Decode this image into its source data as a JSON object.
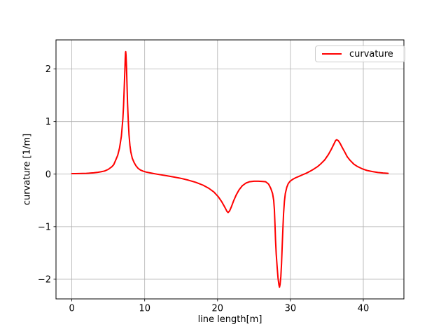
{
  "figure": {
    "background": "#ffffff"
  },
  "chart_data": {
    "type": "line",
    "title": "",
    "xlabel": "line length[m]",
    "ylabel": "curvature [1/m]",
    "xlim": [
      -2.17,
      45.57
    ],
    "ylim": [
      -2.374,
      2.554
    ],
    "x_ticks": [
      0,
      10,
      20,
      30,
      40
    ],
    "x_tick_labels": [
      "0",
      "10",
      "20",
      "30",
      "40"
    ],
    "y_ticks": [
      -2,
      -1,
      0,
      1,
      2
    ],
    "y_tick_labels": [
      "−2",
      "−1",
      "0",
      "1",
      "2"
    ],
    "grid": true,
    "grid_color": "#b0b0b0",
    "spine_color": "#000000",
    "legend": {
      "label": "curvature",
      "position": "upper right",
      "edge_color": "#cccccc"
    },
    "series": [
      {
        "name": "curvature",
        "color": "#ff0000",
        "linewidth": 2,
        "points": [
          [
            0,
            0.01
          ],
          [
            0.5,
            0.01
          ],
          [
            1,
            0.012
          ],
          [
            1.5,
            0.014
          ],
          [
            2,
            0.016
          ],
          [
            2.5,
            0.02
          ],
          [
            3,
            0.025
          ],
          [
            3.5,
            0.033
          ],
          [
            4,
            0.045
          ],
          [
            4.5,
            0.06
          ],
          [
            5,
            0.09
          ],
          [
            5.5,
            0.14
          ],
          [
            5.75,
            0.18
          ],
          [
            6.0,
            0.26
          ],
          [
            6.3,
            0.36
          ],
          [
            6.55,
            0.5
          ],
          [
            6.8,
            0.72
          ],
          [
            7.0,
            1.05
          ],
          [
            7.1,
            1.3
          ],
          [
            7.2,
            1.65
          ],
          [
            7.28,
            1.98
          ],
          [
            7.33,
            2.2
          ],
          [
            7.37,
            2.31
          ],
          [
            7.4,
            2.33
          ],
          [
            7.44,
            2.27
          ],
          [
            7.5,
            2.05
          ],
          [
            7.57,
            1.72
          ],
          [
            7.65,
            1.35
          ],
          [
            7.75,
            1.0
          ],
          [
            7.85,
            0.75
          ],
          [
            7.97,
            0.55
          ],
          [
            8.1,
            0.42
          ],
          [
            8.3,
            0.3
          ],
          [
            8.55,
            0.22
          ],
          [
            8.8,
            0.16
          ],
          [
            9.1,
            0.11
          ],
          [
            9.4,
            0.08
          ],
          [
            9.8,
            0.055
          ],
          [
            10.2,
            0.04
          ],
          [
            10.7,
            0.025
          ],
          [
            11.2,
            0.012
          ],
          [
            11.7,
            0.0
          ],
          [
            12.2,
            -0.012
          ],
          [
            13,
            -0.03
          ],
          [
            14,
            -0.055
          ],
          [
            15,
            -0.08
          ],
          [
            16,
            -0.115
          ],
          [
            17,
            -0.155
          ],
          [
            18,
            -0.21
          ],
          [
            18.8,
            -0.27
          ],
          [
            19.5,
            -0.34
          ],
          [
            20.1,
            -0.43
          ],
          [
            20.6,
            -0.53
          ],
          [
            21.0,
            -0.63
          ],
          [
            21.3,
            -0.71
          ],
          [
            21.45,
            -0.73
          ],
          [
            21.65,
            -0.7
          ],
          [
            21.9,
            -0.62
          ],
          [
            22.2,
            -0.51
          ],
          [
            22.55,
            -0.4
          ],
          [
            22.95,
            -0.3
          ],
          [
            23.4,
            -0.22
          ],
          [
            23.9,
            -0.17
          ],
          [
            24.4,
            -0.145
          ],
          [
            25.0,
            -0.135
          ],
          [
            25.6,
            -0.135
          ],
          [
            26.2,
            -0.14
          ],
          [
            26.6,
            -0.145
          ],
          [
            27.0,
            -0.19
          ],
          [
            27.3,
            -0.27
          ],
          [
            27.55,
            -0.37
          ],
          [
            27.7,
            -0.5
          ],
          [
            27.8,
            -0.68
          ],
          [
            27.88,
            -0.95
          ],
          [
            27.95,
            -1.25
          ],
          [
            28.05,
            -1.52
          ],
          [
            28.18,
            -1.78
          ],
          [
            28.3,
            -1.98
          ],
          [
            28.42,
            -2.11
          ],
          [
            28.5,
            -2.15
          ],
          [
            28.58,
            -2.1
          ],
          [
            28.68,
            -1.95
          ],
          [
            28.78,
            -1.7
          ],
          [
            28.88,
            -1.35
          ],
          [
            28.97,
            -1.02
          ],
          [
            29.06,
            -0.75
          ],
          [
            29.17,
            -0.52
          ],
          [
            29.3,
            -0.37
          ],
          [
            29.5,
            -0.25
          ],
          [
            29.7,
            -0.18
          ],
          [
            29.95,
            -0.135
          ],
          [
            30.3,
            -0.1
          ],
          [
            30.7,
            -0.07
          ],
          [
            31.2,
            -0.04
          ],
          [
            31.7,
            -0.01
          ],
          [
            32.2,
            0.02
          ],
          [
            32.7,
            0.055
          ],
          [
            33.2,
            0.095
          ],
          [
            33.7,
            0.14
          ],
          [
            34.2,
            0.2
          ],
          [
            34.7,
            0.27
          ],
          [
            35.2,
            0.37
          ],
          [
            35.6,
            0.47
          ],
          [
            35.95,
            0.57
          ],
          [
            36.2,
            0.64
          ],
          [
            36.35,
            0.655
          ],
          [
            36.55,
            0.64
          ],
          [
            36.8,
            0.59
          ],
          [
            37.1,
            0.51
          ],
          [
            37.45,
            0.42
          ],
          [
            37.8,
            0.33
          ],
          [
            38.2,
            0.26
          ],
          [
            38.7,
            0.19
          ],
          [
            39.2,
            0.145
          ],
          [
            39.8,
            0.105
          ],
          [
            40.5,
            0.07
          ],
          [
            41.2,
            0.05
          ],
          [
            42.0,
            0.032
          ],
          [
            42.7,
            0.022
          ],
          [
            43.4,
            0.015
          ]
        ]
      }
    ]
  }
}
